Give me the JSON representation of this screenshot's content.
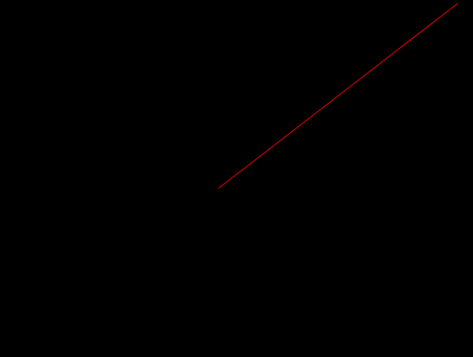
{
  "canvas": {
    "background_color": "#000000",
    "line_color": "#ff0000"
  }
}
